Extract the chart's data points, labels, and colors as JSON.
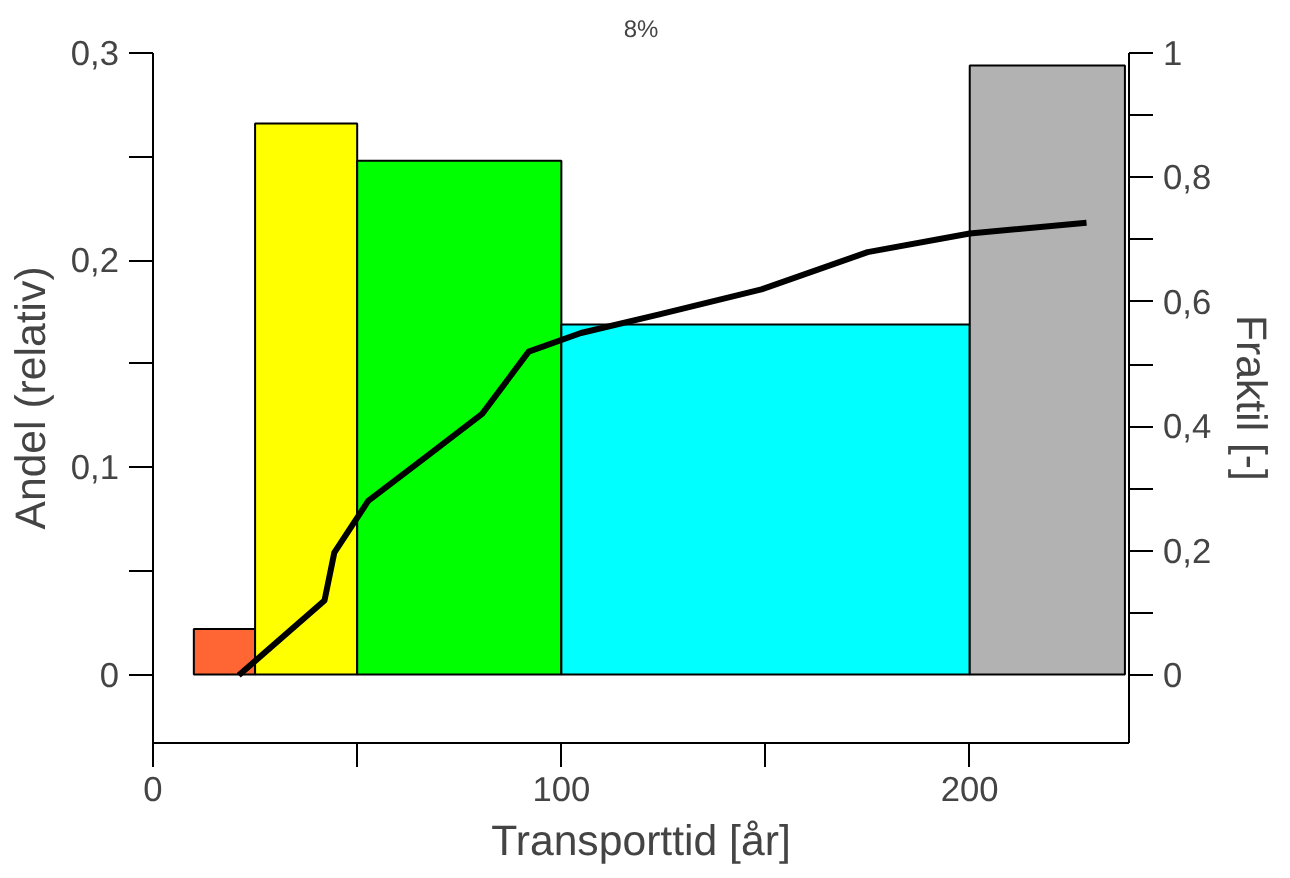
{
  "chart_data": {
    "type": "histogram",
    "xlabel": "Transporttid [år]",
    "ylabel": "Andel (relativ)",
    "y2label": "Fraktil [-]",
    "annotations": [
      "8%"
    ],
    "bins": [
      10,
      25,
      50,
      100,
      200,
      238
    ],
    "values": [
      0.022,
      0.266,
      0.248,
      0.169,
      0.294
    ],
    "colors": [
      "#ff6633",
      "#ffff00",
      "#00ff00",
      "#00ffff",
      "#b2b2b2"
    ],
    "series": [
      {
        "type": "line",
        "axis": "y2",
        "color": "#000000",
        "x": [
          21,
          42,
          44.4,
          52.7,
          66.7,
          80.6,
          92,
          104.8,
          124,
          149,
          175,
          200,
          228.6
        ],
        "values": [
          0,
          0.12,
          0.197,
          0.28,
          0.35,
          0.42,
          0.52,
          0.55,
          0.58,
          0.62,
          0.68,
          0.71,
          0.727
        ]
      }
    ],
    "xlim": [
      0,
      239
    ],
    "ylim": [
      -0.033,
      0.3
    ],
    "y2lim": [
      -0.109,
      1
    ],
    "xticks": [
      0,
      {
        "value": 50,
        "label": null
      },
      100,
      {
        "value": 150,
        "label": null
      },
      200
    ],
    "yticks": [
      0,
      {
        "value": 0.05,
        "label": null
      },
      {
        "value": 0.1,
        "label": "0,1"
      },
      {
        "value": 0.15,
        "label": null
      },
      {
        "value": 0.2,
        "label": "0,2"
      },
      {
        "value": 0.25,
        "label": null
      },
      {
        "value": 0.3,
        "label": "0,3"
      }
    ],
    "y2ticks": [
      0,
      {
        "value": 0.1,
        "label": null
      },
      {
        "value": 0.2,
        "label": "0,2"
      },
      {
        "value": 0.3,
        "label": null
      },
      {
        "value": 0.4,
        "label": "0,4"
      },
      {
        "value": 0.5,
        "label": null
      },
      {
        "value": 0.6,
        "label": "0,6"
      },
      {
        "value": 0.7,
        "label": null
      },
      {
        "value": 0.8,
        "label": "0,8"
      },
      {
        "value": 0.9,
        "label": null
      },
      1
    ],
    "grid": false
  }
}
